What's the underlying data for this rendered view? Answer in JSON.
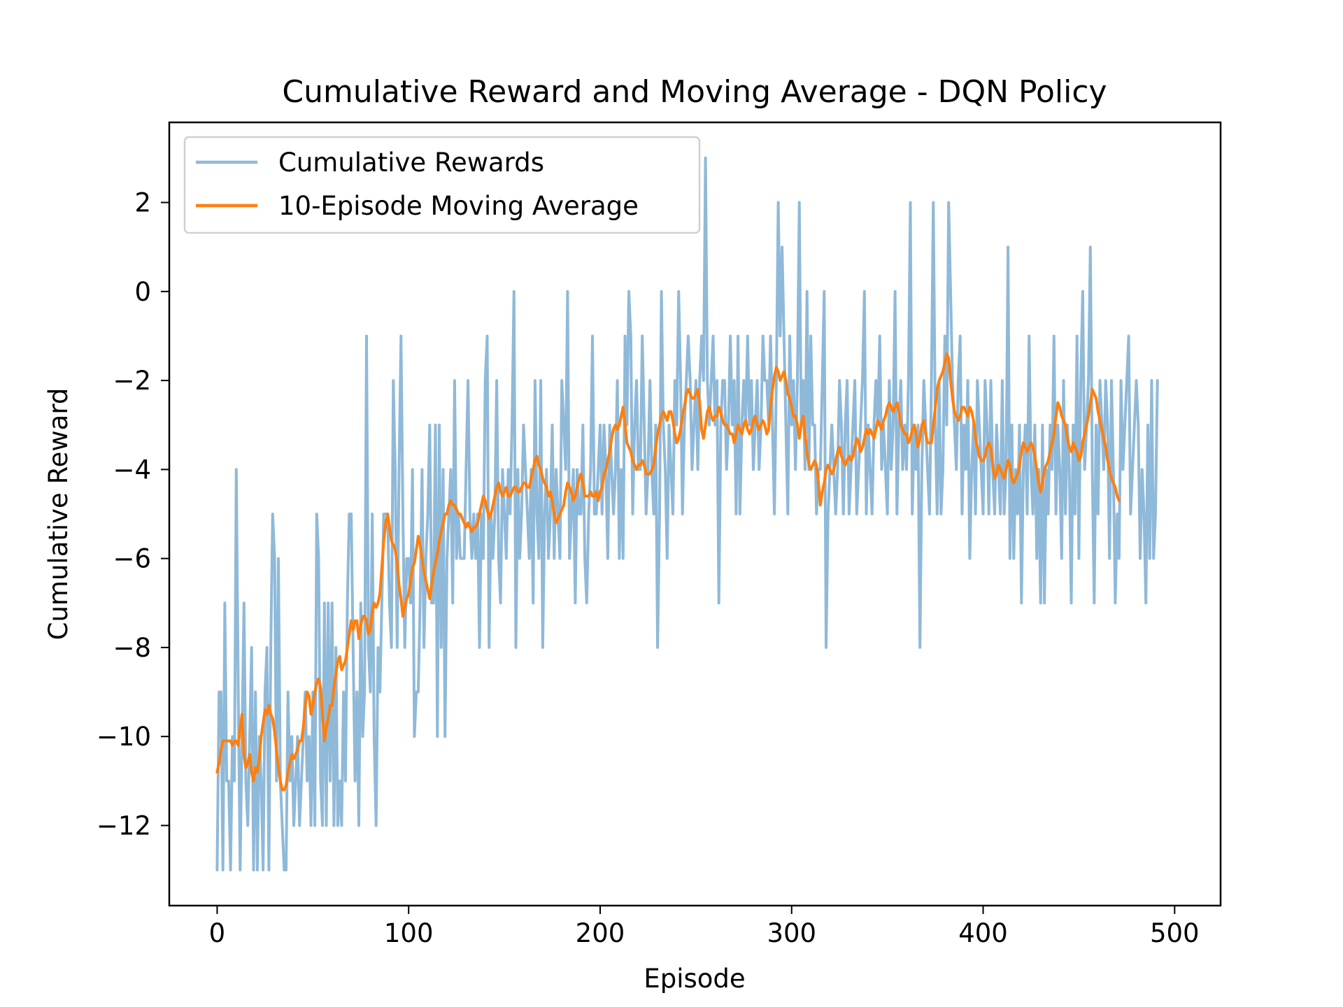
{
  "chart_data": {
    "type": "line",
    "title": "Cumulative Reward and Moving Average - DQN Policy",
    "xlabel": "Episode",
    "ylabel": "Cumulative Reward",
    "xlim": [
      -25,
      524
    ],
    "ylim": [
      -13.8,
      3.8
    ],
    "x_ticks": [
      0,
      100,
      200,
      300,
      400,
      500
    ],
    "y_ticks": [
      2,
      0,
      -2,
      -4,
      -6,
      -8,
      -10,
      -12
    ],
    "x_tick_labels": [
      "0",
      "100",
      "200",
      "300",
      "400",
      "500"
    ],
    "y_tick_labels": [
      "2",
      "0",
      "−2",
      "−4",
      "−6",
      "−8",
      "−10",
      "−12"
    ],
    "grid": false,
    "legend_position": "upper-left",
    "colors": {
      "raw": "#8fb9d9",
      "ma": "#ff7f0e"
    },
    "series": [
      {
        "name": "Cumulative Rewards",
        "x_start": 0,
        "values": [
          -13,
          -9,
          -9,
          -13,
          -7,
          -11,
          -11,
          -13,
          -10,
          -11,
          -4,
          -9,
          -13,
          -10,
          -7,
          -11,
          -12,
          -10,
          -8,
          -13,
          -9,
          -13,
          -10,
          -11,
          -13,
          -9,
          -8,
          -13,
          -8,
          -5,
          -6,
          -11,
          -6,
          -11,
          -12,
          -13,
          -13,
          -9,
          -11,
          -10,
          -12,
          -11,
          -10,
          -12,
          -11,
          -10,
          -9,
          -11,
          -10,
          -12,
          -9,
          -12,
          -5,
          -6,
          -11,
          -12,
          -7,
          -12,
          -7,
          -11,
          -7,
          -12,
          -8,
          -12,
          -11,
          -12,
          -9,
          -11,
          -7,
          -5,
          -5,
          -8,
          -11,
          -9,
          -12,
          -7,
          -10,
          -9,
          -1,
          -8,
          -9,
          -5,
          -10,
          -12,
          -8,
          -9,
          -7,
          -5,
          -5,
          -5,
          -7,
          -8,
          -2,
          -4,
          -8,
          -4,
          -1,
          -5,
          -8,
          -6,
          -6,
          -7,
          -4,
          -10,
          -9,
          -9,
          -7,
          -4,
          -8,
          -6,
          -5,
          -3,
          -7,
          -7,
          -3,
          -10,
          -3,
          -8,
          -4,
          -10,
          -6,
          -5,
          -4,
          -7,
          -2,
          -6,
          -5,
          -6,
          -6,
          -6,
          -4,
          -2,
          -5,
          -6,
          -5,
          -6,
          -5,
          -8,
          -5,
          -6,
          -2,
          -1,
          -8,
          -5,
          -6,
          -5,
          -2,
          -6,
          -7,
          -4,
          -5,
          -6,
          -4,
          -5,
          -3,
          0,
          -8,
          -4,
          -6,
          -5,
          -3,
          -4,
          -5,
          -6,
          -4,
          -7,
          -2,
          -5,
          -6,
          -2,
          -8,
          -5,
          -4,
          -6,
          -5,
          -3,
          -6,
          -4,
          -5,
          -6,
          -2,
          -3,
          -4,
          0,
          -6,
          -5,
          -4,
          -7,
          -4,
          -5,
          -5,
          -3,
          -6,
          -7,
          -5,
          -4,
          -1,
          -5,
          -5,
          -4,
          -3,
          -5,
          -3,
          -4,
          -6,
          -3,
          -4,
          -5,
          -4,
          -2,
          -6,
          -4,
          -6,
          -1,
          -3,
          0,
          -1,
          -5,
          -3,
          -2,
          -4,
          -4,
          -1,
          -3,
          -5,
          -4,
          -2,
          -4,
          -5,
          -3,
          -8,
          -5,
          0,
          -3,
          -4,
          -6,
          -3,
          -4,
          -5,
          -2,
          -3,
          0,
          -2,
          -5,
          -3,
          -2,
          -1,
          -2,
          -4,
          -3,
          -2,
          -4,
          -2,
          -1,
          -2,
          3,
          -2,
          -3,
          -2,
          -1,
          -3,
          -2,
          -7,
          -3,
          -2,
          -2,
          -4,
          -3,
          -1,
          -3,
          -2,
          -5,
          -1,
          -5,
          -3,
          -2,
          -3,
          -1,
          -3,
          -2,
          -4,
          -3,
          -2,
          -4,
          -3,
          -1,
          -2,
          -2,
          -3,
          -1,
          -3,
          -5,
          -2,
          2,
          -1,
          1,
          -1,
          -3,
          -5,
          -1,
          -3,
          -2,
          -4,
          -2,
          2,
          -3,
          -2,
          -4,
          0,
          -4,
          -1,
          -3,
          -3,
          -5,
          -4,
          -4,
          -2,
          0,
          -8,
          -5,
          -4,
          -3,
          -4,
          -5,
          -4,
          -2,
          -3,
          -5,
          -3,
          -2,
          -5,
          -4,
          -3,
          -2,
          -5,
          -4,
          -3,
          -2,
          0,
          -5,
          -3,
          -4,
          -5,
          -3,
          -2,
          -3,
          -1,
          -4,
          -3,
          -4,
          -5,
          -2,
          -4,
          -3,
          0,
          -5,
          -3,
          -2,
          -4,
          -3,
          -4,
          -2,
          2,
          -5,
          -3,
          -4,
          -3,
          -8,
          -4,
          -2,
          -3,
          -4,
          -5,
          -2,
          2,
          -3,
          -5,
          -2,
          -5,
          -4,
          -1,
          -3,
          2,
          0,
          -2,
          -3,
          -4,
          -2,
          -1,
          -5,
          -3,
          -4,
          -2,
          -6,
          -4,
          -3,
          -5,
          -2,
          -3,
          -4,
          -5,
          -2,
          -3,
          -5,
          -2,
          -4,
          -5,
          -3,
          -4,
          -5,
          -2,
          -5,
          -4,
          1,
          -6,
          -3,
          -6,
          -4,
          -5,
          -3,
          -7,
          -4,
          -3,
          -5,
          -1,
          -4,
          -5,
          -3,
          -6,
          -4,
          -7,
          -3,
          -7,
          -4,
          -5,
          -3,
          -4,
          -1,
          -5,
          -3,
          -4,
          -6,
          -2,
          -5,
          -3,
          -4,
          -7,
          -3,
          -5,
          -1,
          -6,
          -2,
          0,
          -4,
          -3,
          -2,
          1,
          -4,
          -7,
          -3,
          -5,
          -2,
          -3,
          -4,
          -2,
          -3,
          -6,
          -2,
          -4,
          -7,
          -5,
          -6,
          -2,
          -4,
          -3,
          -2,
          -1,
          -5,
          -4,
          -3,
          -2,
          -3,
          -6,
          -4,
          -5,
          -7,
          -3,
          -6,
          -2,
          -6,
          -5,
          -2
        ]
      },
      {
        "name": "10-Episode Moving Average",
        "x_start": 0,
        "values": [
          -10.8,
          -10.6,
          -10.3,
          -10.1,
          -10.1,
          -10.1,
          -10.1,
          -10.1,
          -10.2,
          -10.1,
          -10.1,
          -10.2,
          -9.8,
          -9.5,
          -10.4,
          -10.7,
          -10.6,
          -10.4,
          -10.8,
          -11.0,
          -10.7,
          -10.8,
          -10.5,
          -10.0,
          -9.7,
          -9.4,
          -9.5,
          -9.3,
          -9.5,
          -9.6,
          -9.9,
          -10.3,
          -10.7,
          -11.0,
          -11.2,
          -11.2,
          -11.1,
          -10.8,
          -10.6,
          -10.4,
          -10.5,
          -10.4,
          -10.3,
          -10.1,
          -10.1,
          -9.8,
          -9.3,
          -9.0,
          -9.1,
          -9.5,
          -9.3,
          -9.0,
          -8.8,
          -8.7,
          -8.9,
          -9.5,
          -10.1,
          -9.8,
          -9.6,
          -9.3,
          -9.3,
          -8.9,
          -8.6,
          -8.3,
          -8.2,
          -8.5,
          -8.4,
          -8.3,
          -8.0,
          -7.7,
          -7.4,
          -7.6,
          -7.4,
          -7.4,
          -7.8,
          -7.5,
          -7.3,
          -7.3,
          -7.4,
          -7.7,
          -7.6,
          -7.2,
          -7.0,
          -7.1,
          -7.0,
          -6.8,
          -6.2,
          -5.6,
          -5.2,
          -5.0,
          -5.3,
          -5.6,
          -5.7,
          -5.8,
          -6.1,
          -6.6,
          -6.9,
          -7.3,
          -7.1,
          -6.9,
          -6.8,
          -6.5,
          -6.2,
          -6.1,
          -5.8,
          -5.5,
          -5.7,
          -6.0,
          -6.3,
          -6.5,
          -6.7,
          -6.9,
          -6.6,
          -6.3,
          -6.1,
          -5.9,
          -5.6,
          -5.4,
          -5.2,
          -5.0,
          -5.0,
          -4.8,
          -4.7,
          -4.8,
          -4.8,
          -4.9,
          -5.0,
          -5.0,
          -5.1,
          -5.2,
          -5.3,
          -5.2,
          -5.3,
          -5.4,
          -5.3,
          -5.3,
          -5.2,
          -5.0,
          -4.8,
          -4.6,
          -4.7,
          -4.9,
          -5.1,
          -5.0,
          -4.8,
          -4.6,
          -4.4,
          -4.3,
          -4.5,
          -4.6,
          -4.5,
          -4.4,
          -4.6,
          -4.6,
          -4.5,
          -4.4,
          -4.4,
          -4.5,
          -4.5,
          -4.4,
          -4.3,
          -4.3,
          -4.4,
          -4.4,
          -4.2,
          -4.0,
          -3.8,
          -3.7,
          -3.9,
          -4.0,
          -4.2,
          -4.3,
          -4.4,
          -4.6,
          -4.5,
          -4.7,
          -5.0,
          -5.2,
          -5.1,
          -5.0,
          -4.9,
          -4.8,
          -4.5,
          -4.3,
          -4.4,
          -4.5,
          -4.7,
          -4.6,
          -4.4,
          -4.2,
          -4.1,
          -4.3,
          -4.6,
          -4.6,
          -4.6,
          -4.5,
          -4.6,
          -4.6,
          -4.5,
          -4.7,
          -4.5,
          -4.4,
          -4.1,
          -4.0,
          -3.8,
          -3.6,
          -3.3,
          -3.1,
          -3.0,
          -3.1,
          -3.0,
          -2.8,
          -2.6,
          -3.0,
          -3.4,
          -3.5,
          -3.6,
          -3.8,
          -3.9,
          -4.0,
          -3.9,
          -3.9,
          -3.8,
          -3.9,
          -4.1,
          -4.1,
          -4.1,
          -4.0,
          -3.9,
          -3.5,
          -3.2,
          -3.0,
          -2.8,
          -2.7,
          -2.8,
          -2.9,
          -2.7,
          -2.7,
          -2.9,
          -3.2,
          -3.4,
          -3.3,
          -3.1,
          -2.8,
          -2.6,
          -2.3,
          -2.2,
          -2.3,
          -2.4,
          -2.4,
          -2.3,
          -2.2,
          -2.5,
          -3.1,
          -3.3,
          -3.0,
          -2.7,
          -2.6,
          -2.8,
          -2.9,
          -2.8,
          -2.8,
          -2.6,
          -2.7,
          -2.9,
          -3.0,
          -3.0,
          -3.1,
          -3.2,
          -3.2,
          -3.4,
          -3.2,
          -3.0,
          -3.1,
          -3.2,
          -3.0,
          -2.9,
          -3.1,
          -3.2,
          -3.1,
          -2.9,
          -2.8,
          -3.0,
          -3.1,
          -3.0,
          -2.9,
          -3.0,
          -3.2,
          -3.1,
          -2.6,
          -2.2,
          -1.9,
          -1.7,
          -1.8,
          -2.0,
          -1.9,
          -1.8,
          -2.0,
          -2.3,
          -2.4,
          -2.6,
          -2.8,
          -2.8,
          -3.0,
          -3.3,
          -3.0,
          -2.8,
          -3.2,
          -3.6,
          -3.9,
          -4.0,
          -3.9,
          -3.8,
          -3.9,
          -4.3,
          -4.8,
          -4.5,
          -4.3,
          -4.0,
          -3.9,
          -4.0,
          -4.1,
          -4.0,
          -3.8,
          -3.6,
          -3.5,
          -3.7,
          -3.8,
          -3.9,
          -3.8,
          -3.7,
          -3.8,
          -3.7,
          -3.5,
          -3.3,
          -3.4,
          -3.6,
          -3.5,
          -3.3,
          -3.1,
          -3.2,
          -3.1,
          -3.2,
          -3.3,
          -3.1,
          -2.9,
          -3.0,
          -3.1,
          -2.9,
          -2.8,
          -2.6,
          -2.5,
          -2.6,
          -2.7,
          -2.6,
          -2.5,
          -2.7,
          -3.0,
          -3.1,
          -3.2,
          -3.2,
          -3.4,
          -3.3,
          -3.1,
          -3.0,
          -3.2,
          -3.5,
          -3.3,
          -3.0,
          -2.9,
          -3.2,
          -3.4,
          -3.4,
          -3.4,
          -3.0,
          -2.6,
          -2.2,
          -2.0,
          -1.9,
          -1.8,
          -1.6,
          -1.4,
          -1.5,
          -2.0,
          -2.4,
          -2.7,
          -2.8,
          -2.9,
          -2.8,
          -2.6,
          -2.6,
          -2.7,
          -2.8,
          -2.6,
          -2.7,
          -2.9,
          -3.3,
          -3.5,
          -3.7,
          -3.8,
          -3.8,
          -3.7,
          -3.5,
          -3.4,
          -3.5,
          -3.9,
          -4.2,
          -4.1,
          -3.9,
          -4.0,
          -4.1,
          -4.2,
          -4.0,
          -3.8,
          -3.9,
          -4.2,
          -4.3,
          -4.2,
          -4.1,
          -3.9,
          -3.6,
          -3.4,
          -3.5,
          -3.6,
          -3.5,
          -3.4,
          -3.5,
          -3.7,
          -4.0,
          -4.3,
          -4.5,
          -4.3,
          -4.0,
          -3.9,
          -3.8,
          -3.6,
          -3.4,
          -3.2,
          -2.8,
          -2.5,
          -2.6,
          -2.8,
          -2.9,
          -3.0,
          -3.3,
          -3.5,
          -3.6,
          -3.4,
          -3.5,
          -3.6,
          -3.8,
          -3.7,
          -3.4,
          -3.2,
          -3.0,
          -2.8,
          -2.5,
          -2.2,
          -2.3,
          -2.4,
          -2.7,
          -2.9,
          -3.1,
          -3.3,
          -3.5,
          -3.8,
          -4.0,
          -4.2,
          -4.3,
          -4.4,
          -4.6,
          -4.7
        ]
      }
    ]
  }
}
